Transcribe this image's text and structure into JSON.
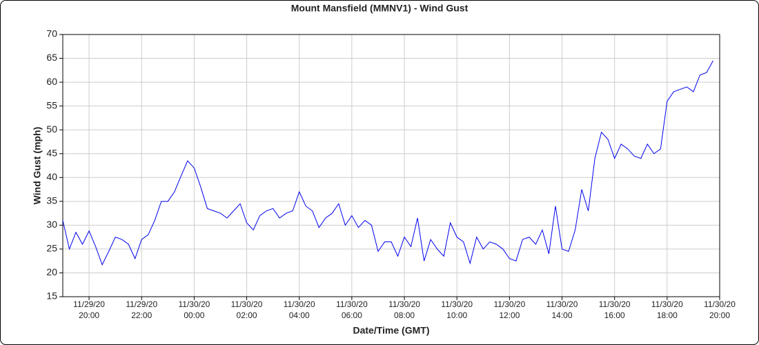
{
  "chart_data": {
    "type": "line",
    "title": "Mount Mansfield (MMNV1) - Wind Gust",
    "xlabel": "Date/Time (GMT)",
    "ylabel": "Wind Gust (mph)",
    "grid": true,
    "xlim": [
      "2020-11-29T19:00",
      "2020-11-30T20:00"
    ],
    "ylim": [
      15,
      70
    ],
    "yticks": [
      15,
      20,
      25,
      30,
      35,
      40,
      45,
      50,
      55,
      60,
      65,
      70
    ],
    "xticks": [
      {
        "value": "2020-11-29T20:00",
        "label": [
          "11/29/20",
          "20:00"
        ]
      },
      {
        "value": "2020-11-29T22:00",
        "label": [
          "11/29/20",
          "22:00"
        ]
      },
      {
        "value": "2020-11-30T00:00",
        "label": [
          "11/30/20",
          "00:00"
        ]
      },
      {
        "value": "2020-11-30T02:00",
        "label": [
          "11/30/20",
          "02:00"
        ]
      },
      {
        "value": "2020-11-30T04:00",
        "label": [
          "11/30/20",
          "04:00"
        ]
      },
      {
        "value": "2020-11-30T06:00",
        "label": [
          "11/30/20",
          "06:00"
        ]
      },
      {
        "value": "2020-11-30T08:00",
        "label": [
          "11/30/20",
          "08:00"
        ]
      },
      {
        "value": "2020-11-30T10:00",
        "label": [
          "11/30/20",
          "10:00"
        ]
      },
      {
        "value": "2020-11-30T12:00",
        "label": [
          "11/30/20",
          "12:00"
        ]
      },
      {
        "value": "2020-11-30T14:00",
        "label": [
          "11/30/20",
          "14:00"
        ]
      },
      {
        "value": "2020-11-30T16:00",
        "label": [
          "11/30/20",
          "16:00"
        ]
      },
      {
        "value": "2020-11-30T18:00",
        "label": [
          "11/30/20",
          "18:00"
        ]
      },
      {
        "value": "2020-11-30T20:00",
        "label": [
          "11/30/20",
          "20:00"
        ]
      }
    ],
    "x": [
      "2020-11-29T19:00",
      "2020-11-29T19:15",
      "2020-11-29T19:30",
      "2020-11-29T19:45",
      "2020-11-29T20:00",
      "2020-11-29T20:15",
      "2020-11-29T20:30",
      "2020-11-29T20:45",
      "2020-11-29T21:00",
      "2020-11-29T21:15",
      "2020-11-29T21:30",
      "2020-11-29T21:45",
      "2020-11-29T22:00",
      "2020-11-29T22:15",
      "2020-11-29T22:30",
      "2020-11-29T22:45",
      "2020-11-29T23:00",
      "2020-11-29T23:15",
      "2020-11-29T23:30",
      "2020-11-29T23:45",
      "2020-11-30T00:00",
      "2020-11-30T00:15",
      "2020-11-30T00:30",
      "2020-11-30T00:45",
      "2020-11-30T01:00",
      "2020-11-30T01:15",
      "2020-11-30T01:30",
      "2020-11-30T01:45",
      "2020-11-30T02:00",
      "2020-11-30T02:15",
      "2020-11-30T02:30",
      "2020-11-30T02:45",
      "2020-11-30T03:00",
      "2020-11-30T03:15",
      "2020-11-30T03:30",
      "2020-11-30T03:45",
      "2020-11-30T04:00",
      "2020-11-30T04:15",
      "2020-11-30T04:30",
      "2020-11-30T04:45",
      "2020-11-30T05:00",
      "2020-11-30T05:15",
      "2020-11-30T05:30",
      "2020-11-30T05:45",
      "2020-11-30T06:00",
      "2020-11-30T06:15",
      "2020-11-30T06:30",
      "2020-11-30T06:45",
      "2020-11-30T07:00",
      "2020-11-30T07:15",
      "2020-11-30T07:30",
      "2020-11-30T07:45",
      "2020-11-30T08:00",
      "2020-11-30T08:15",
      "2020-11-30T08:30",
      "2020-11-30T08:45",
      "2020-11-30T09:00",
      "2020-11-30T09:15",
      "2020-11-30T09:30",
      "2020-11-30T09:45",
      "2020-11-30T10:00",
      "2020-11-30T10:15",
      "2020-11-30T10:30",
      "2020-11-30T10:45",
      "2020-11-30T11:00",
      "2020-11-30T11:15",
      "2020-11-30T11:30",
      "2020-11-30T11:45",
      "2020-11-30T12:00",
      "2020-11-30T12:15",
      "2020-11-30T12:30",
      "2020-11-30T12:45",
      "2020-11-30T13:00",
      "2020-11-30T13:15",
      "2020-11-30T13:30",
      "2020-11-30T13:45",
      "2020-11-30T14:00",
      "2020-11-30T14:15",
      "2020-11-30T14:30",
      "2020-11-30T14:45",
      "2020-11-30T15:00",
      "2020-11-30T15:15",
      "2020-11-30T15:30",
      "2020-11-30T15:45",
      "2020-11-30T16:00",
      "2020-11-30T16:15",
      "2020-11-30T16:30",
      "2020-11-30T16:45",
      "2020-11-30T17:00",
      "2020-11-30T17:15",
      "2020-11-30T17:30",
      "2020-11-30T17:45",
      "2020-11-30T18:00",
      "2020-11-30T18:15",
      "2020-11-30T18:30",
      "2020-11-30T18:45",
      "2020-11-30T19:00",
      "2020-11-30T19:15",
      "2020-11-30T19:30",
      "2020-11-30T19:45"
    ],
    "series": [
      {
        "color": "#0000ee",
        "values": [
          31,
          25,
          28.5,
          26,
          28.8,
          25.5,
          21.7,
          24.5,
          27.5,
          27,
          26,
          23,
          27,
          28,
          31,
          35,
          35,
          37,
          40.3,
          43.5,
          42,
          38,
          33.5,
          33,
          32.5,
          31.5,
          33,
          34.5,
          30.5,
          29,
          32,
          33,
          33.5,
          31.5,
          32.5,
          33,
          37,
          34,
          33,
          29.5,
          31.5,
          32.5,
          34.5,
          30,
          32,
          29.5,
          31,
          30,
          24.5,
          26.5,
          26.5,
          23.5,
          27.5,
          25.5,
          31.5,
          22.5,
          27,
          25,
          23.5,
          30.5,
          27.5,
          26.5,
          22,
          27.5,
          25,
          26.5,
          26,
          25,
          23,
          22.5,
          27,
          27.5,
          26,
          29,
          24,
          34,
          25,
          24.5,
          29,
          37.5,
          33,
          44,
          49.5,
          48,
          44,
          47,
          46,
          44.5,
          44,
          47,
          45,
          46,
          56,
          58,
          58.5,
          59,
          58,
          61.5,
          62,
          64.5
        ]
      }
    ]
  }
}
